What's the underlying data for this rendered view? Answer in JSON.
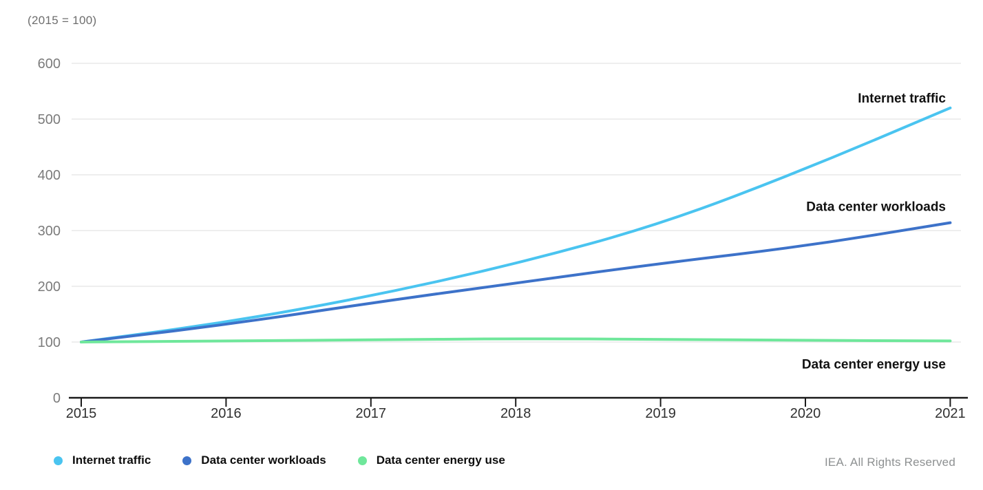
{
  "subtitle": "(2015 = 100)",
  "footer": "IEA. All Rights Reserved",
  "chart_data": {
    "type": "line",
    "title": "",
    "index_note": "(2015 = 100)",
    "x": [
      2015,
      2016,
      2017,
      2018,
      2019,
      2020,
      2021
    ],
    "series": [
      {
        "name": "Internet traffic",
        "color": "#4AC4F0",
        "values": [
          100,
          135,
          182,
          240,
          311,
          410,
          520
        ]
      },
      {
        "name": "Data center workloads",
        "color": "#3D72C9",
        "values": [
          100,
          131,
          170,
          206,
          241,
          272,
          314
        ]
      },
      {
        "name": "Data center energy use",
        "color": "#6FE79B",
        "values": [
          100,
          102,
          104,
          106,
          105,
          103,
          102
        ]
      }
    ],
    "ylim": [
      0,
      600
    ],
    "yticks": [
      0,
      100,
      200,
      300,
      400,
      500,
      600
    ],
    "grid": "horizontal-only",
    "legend_position": "bottom-left",
    "annotations_on_chart": [
      "Internet traffic",
      "Data center workloads",
      "Data center energy use"
    ]
  },
  "colors": {
    "gridline": "#e9e9e9",
    "axis": "#1a1a1a",
    "y_tick_label": "#7b7b7b",
    "x_tick_label": "#2f2f2f",
    "annotation_text": "#111111",
    "subtitle_text": "#6d6d6d",
    "footer_text": "#8d9091"
  }
}
